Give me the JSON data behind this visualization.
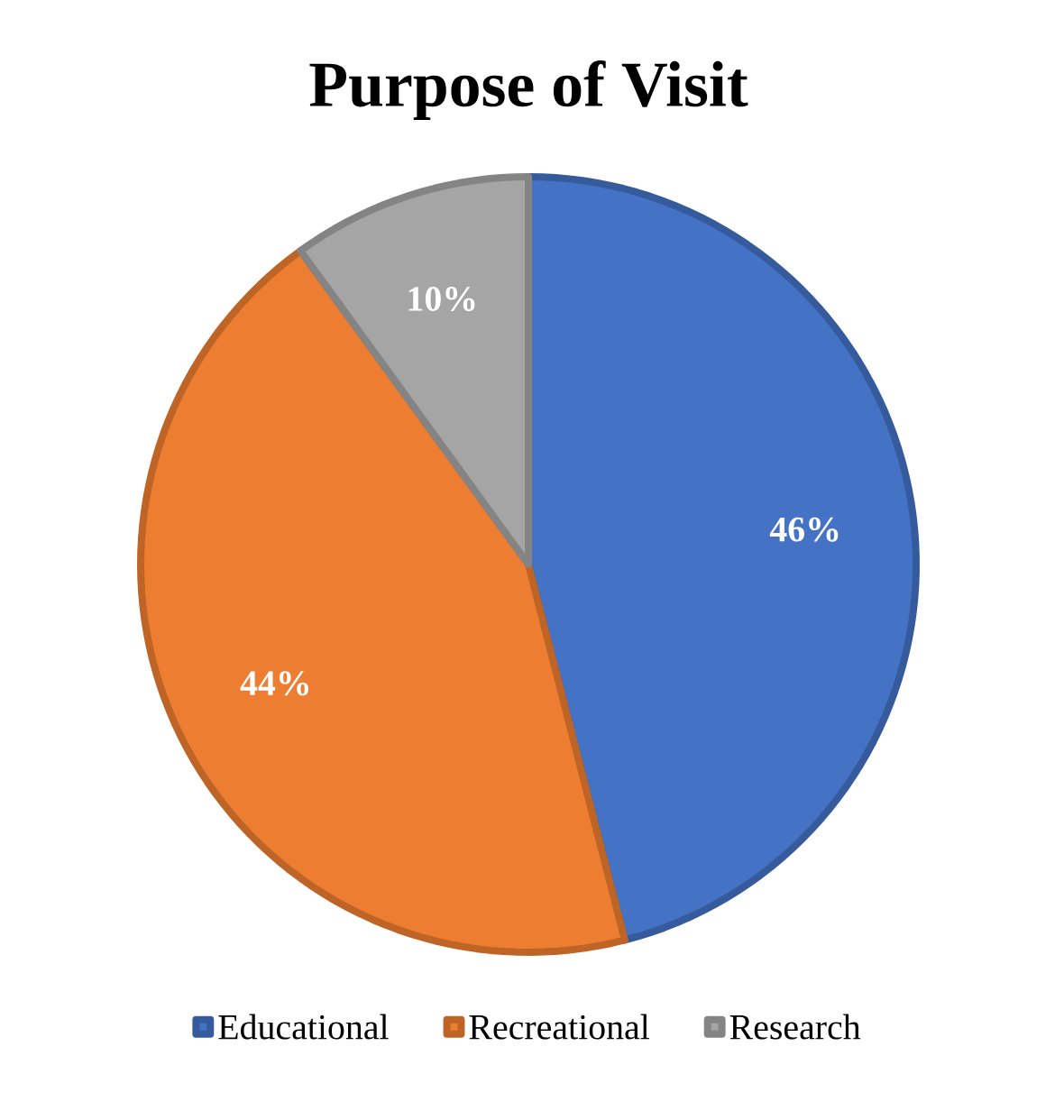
{
  "chart_data": {
    "type": "pie",
    "title": "Purpose of Visit",
    "categories": [
      "Educational",
      "Recreational",
      "Research"
    ],
    "values": [
      46,
      44,
      10
    ],
    "value_labels": [
      "46%",
      "44%",
      "10%"
    ],
    "colors": [
      "#4472c4",
      "#ed7d31",
      "#a5a5a5"
    ],
    "legend": "bottom"
  }
}
